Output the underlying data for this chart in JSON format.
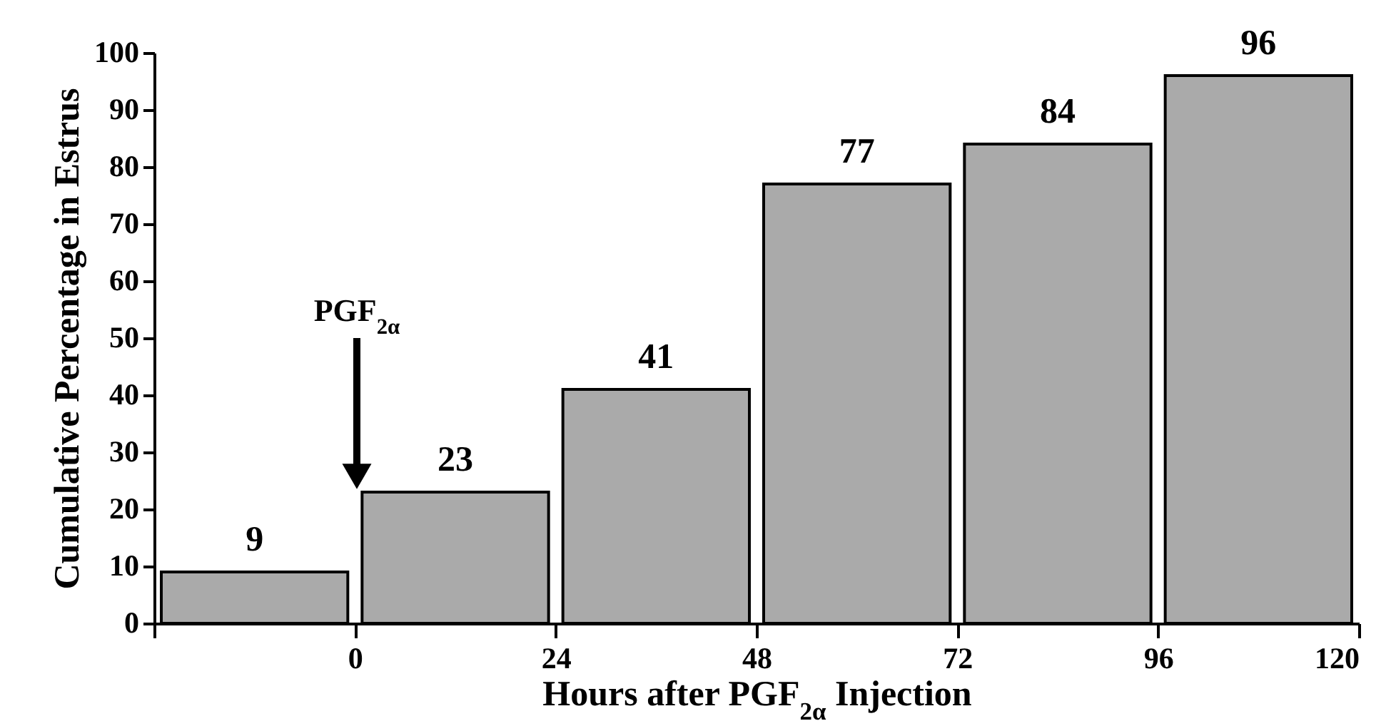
{
  "chart_data": {
    "type": "histogram",
    "xlabel": "Hours after PGF$_{2α}$ Injection",
    "ylabel": "Cumulative Percentage in Estrus",
    "bins": [
      -24,
      0,
      24,
      48,
      72,
      96,
      120
    ],
    "values": [
      9,
      23,
      41,
      77,
      84,
      96
    ],
    "color": "#aaaaaa",
    "data_labels": true,
    "xlim": [
      -24,
      120
    ],
    "xticks": [
      {
        "value": -24,
        "label": null
      },
      0,
      24,
      48,
      72,
      96,
      120
    ],
    "ylim": [
      0,
      100
    ],
    "yticks": [
      0,
      10,
      20,
      30,
      40,
      50,
      60,
      70,
      80,
      90,
      100
    ],
    "annotations": [
      "PGF$_{2α}$"
    ]
  }
}
